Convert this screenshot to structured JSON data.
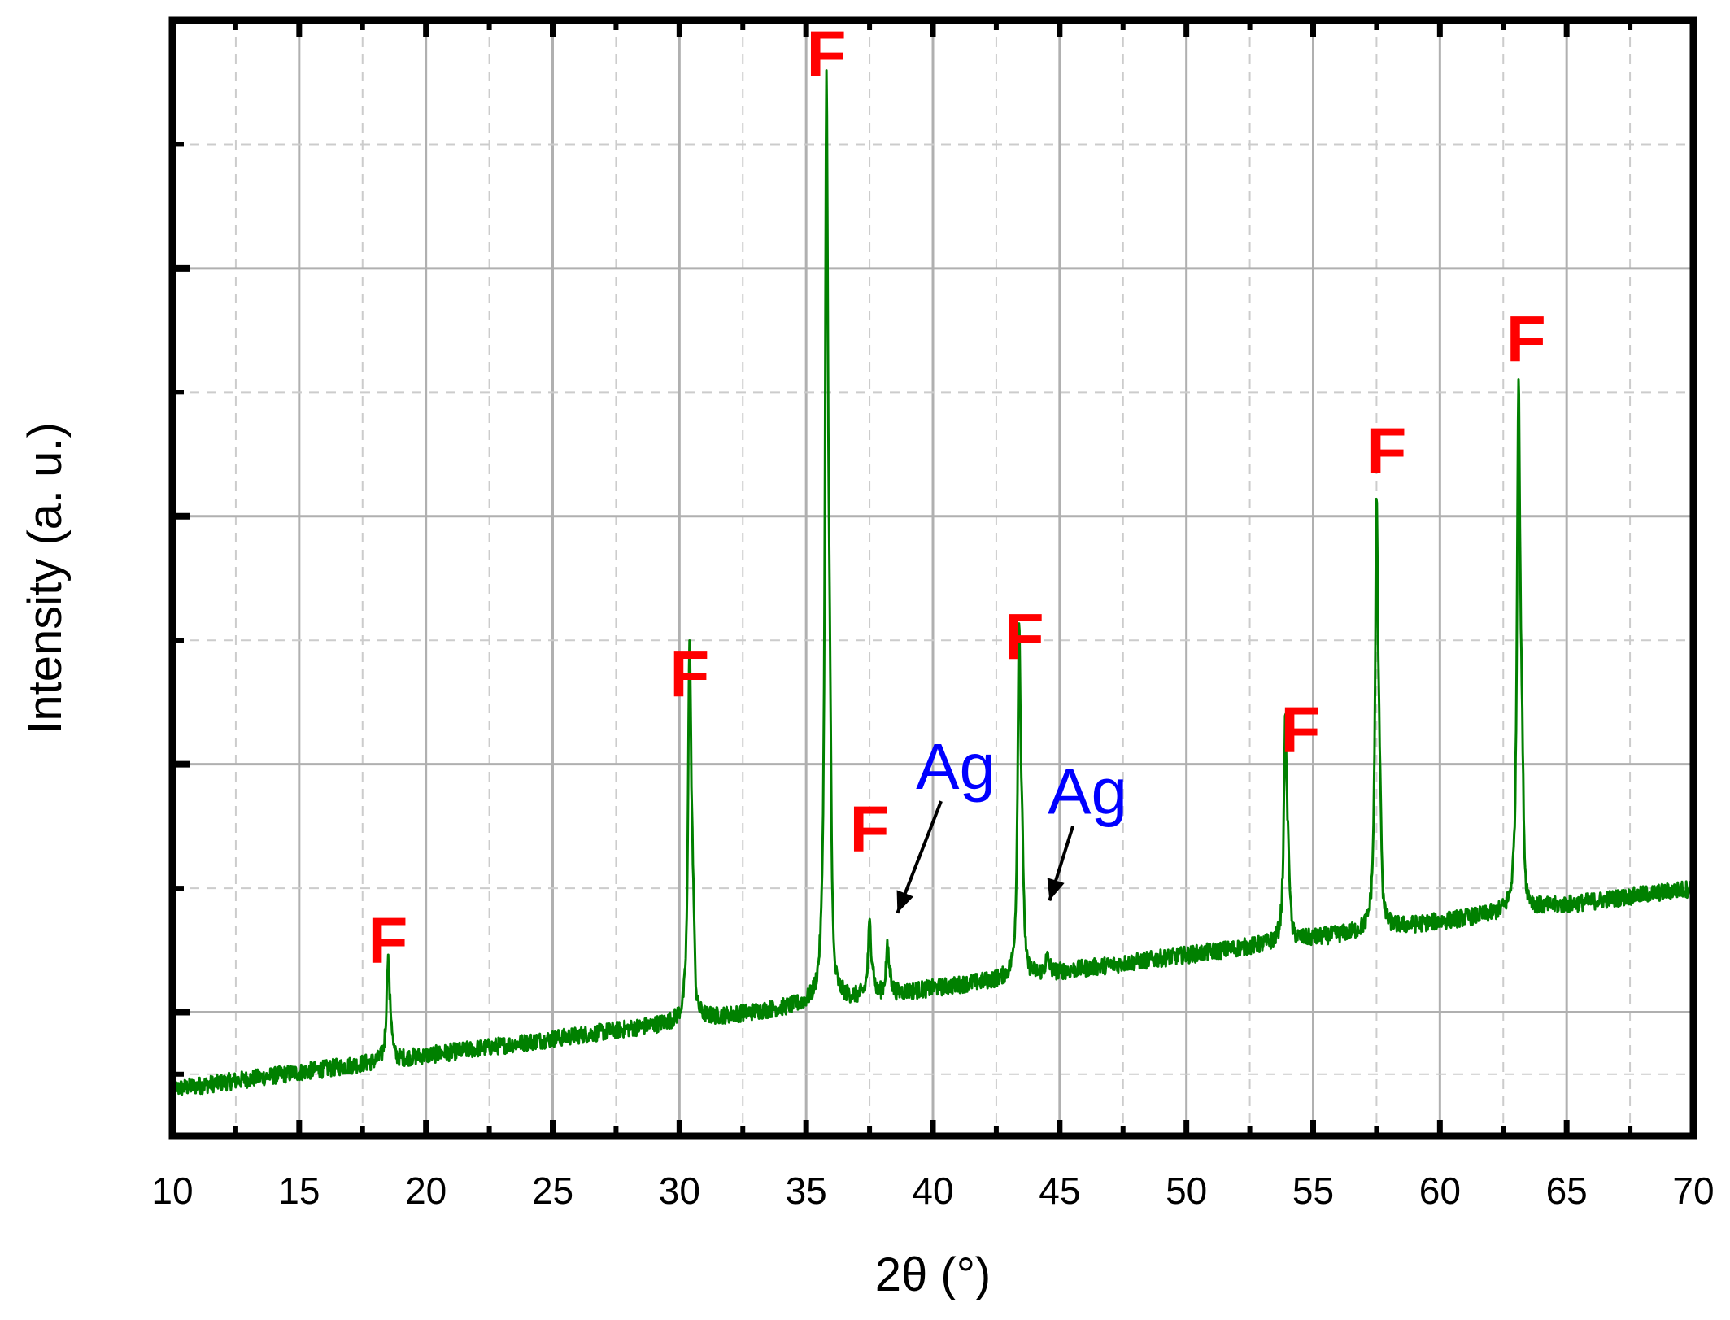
{
  "chart_data": {
    "type": "line",
    "title": "",
    "xlabel": "2θ (°)",
    "ylabel": "Intensity (a. u.)",
    "xlim": [
      10,
      70
    ],
    "ylim": [
      0,
      9
    ],
    "x_ticks_major": [
      10,
      15,
      20,
      25,
      30,
      35,
      40,
      45,
      50,
      55,
      60,
      65,
      70
    ],
    "x_tick_labels": [
      "10",
      "15",
      "20",
      "25",
      "30",
      "35",
      "40",
      "45",
      "50",
      "55",
      "60",
      "65",
      "70"
    ],
    "y_ticks_major": [
      1,
      3,
      5,
      7,
      9
    ],
    "y_ticks_minor": [
      0.5,
      2,
      4,
      6,
      8
    ],
    "y_tick_labels_shown": false,
    "grid": true,
    "series": [
      {
        "color": "#008000",
        "baseline": [
          [
            10,
            0.38
          ],
          [
            70,
            2.0
          ]
        ],
        "peaks": [
          {
            "x": 18.5,
            "height": 0.8
          },
          {
            "x": 30.4,
            "height": 3.0
          },
          {
            "x": 35.8,
            "height": 7.2
          },
          {
            "x": 37.5,
            "height": 0.55
          },
          {
            "x": 38.2,
            "height": 0.35
          },
          {
            "x": 43.4,
            "height": 2.8
          },
          {
            "x": 44.5,
            "height": 0.12
          },
          {
            "x": 53.9,
            "height": 1.75
          },
          {
            "x": 57.5,
            "height": 3.35
          },
          {
            "x": 63.1,
            "height": 4.2
          }
        ],
        "noise": 0.07
      }
    ],
    "annotations": [
      {
        "text": "F",
        "x": 18.5,
        "y": 1.4,
        "color": "#ff0000",
        "kind": "F"
      },
      {
        "text": "F",
        "x": 30.4,
        "y": 3.55,
        "color": "#ff0000",
        "kind": "F"
      },
      {
        "text": "F",
        "x": 35.8,
        "y": 8.55,
        "color": "#ff0000",
        "kind": "F"
      },
      {
        "text": "F",
        "x": 37.5,
        "y": 2.3,
        "color": "#ff0000",
        "kind": "F"
      },
      {
        "text": "Ag",
        "x": 40.9,
        "y": 2.8,
        "color": "#0000ff",
        "kind": "Ag",
        "arrow_to": [
          38.6,
          1.8
        ]
      },
      {
        "text": "F",
        "x": 43.6,
        "y": 3.85,
        "color": "#ff0000",
        "kind": "F"
      },
      {
        "text": "Ag",
        "x": 46.1,
        "y": 2.6,
        "color": "#0000ff",
        "kind": "Ag",
        "arrow_to": [
          44.6,
          1.9
        ]
      },
      {
        "text": "F",
        "x": 54.5,
        "y": 3.1,
        "color": "#ff0000",
        "kind": "F"
      },
      {
        "text": "F",
        "x": 57.9,
        "y": 5.35,
        "color": "#ff0000",
        "kind": "F"
      },
      {
        "text": "F",
        "x": 63.4,
        "y": 6.25,
        "color": "#ff0000",
        "kind": "F"
      }
    ]
  }
}
